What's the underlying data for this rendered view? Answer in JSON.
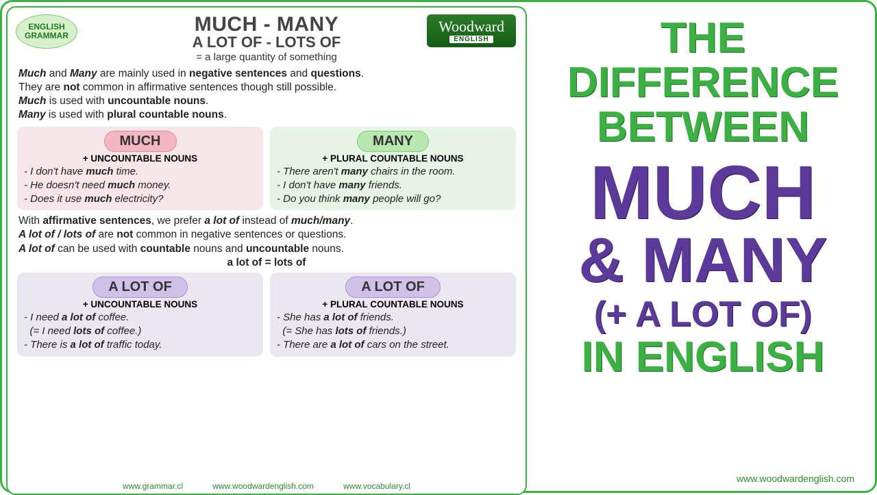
{
  "badge": {
    "line1": "ENGLISH",
    "line2": "GRAMMAR"
  },
  "logo": {
    "main": "Woodward",
    "sub": "ENGLISH"
  },
  "header": {
    "title1": "MUCH - MANY",
    "title2": "A LOT OF - LOTS OF",
    "subtitle": "= a large quantity of something"
  },
  "intro_html": "<i><b>Much</b></i> and <i><b>Many</b></i> are mainly used in <b>negative sentences</b> and <b>questions</b>.<br>They are <b>not</b> common in affirmative sentences though still possible.<br><i><b>Much</b></i> is used with <b>uncountable nouns</b>.<br><i><b>Many</b></i> is used with <b>plural countable nouns</b>.",
  "box_much": {
    "pill": "MUCH",
    "sub": "+ UNCOUNTABLE NOUNS",
    "ex1": "- I don't have <b>much</b> time.",
    "ex2": "- He doesn't need <b>much</b> money.",
    "ex3": "- Does it use <b>much</b> electricity?"
  },
  "box_many": {
    "pill": "MANY",
    "sub": "+ PLURAL COUNTABLE NOUNS",
    "ex1": "- There aren't <b>many</b> chairs in the room.",
    "ex2": "- I don't have <b>many</b> friends.",
    "ex3": "- Do you think <b>many</b> people will go?"
  },
  "middle_html": "With <b>affirmative sentences</b>, we prefer <i><b>a lot of</b></i> instead of <i><b>much/many</b></i>.<br><i><b>A lot of / lots of</b></i> are <b>not</b> common in negative sentences or questions.<br><i><b>A lot of</b></i> can be used with <b>countable</b> nouns and <b>uncountable</b> nouns.<br><span style='display:block;text-align:center'><b>a lot of = lots of</b></span>",
  "box_alot1": {
    "pill": "A LOT OF",
    "sub": "+ UNCOUNTABLE NOUNS",
    "ex1": "- I need <b>a lot of</b> coffee.",
    "ex2": "&nbsp;&nbsp;(= I need <b>lots of</b> coffee.)",
    "ex3": "- There is <b>a lot of</b> traffic today."
  },
  "box_alot2": {
    "pill": "A LOT OF",
    "sub": "+ PLURAL COUNTABLE NOUNS",
    "ex1": "- She has <b>a lot of</b> friends.",
    "ex2": "&nbsp;&nbsp;(= She has <b>lots of</b> friends.)",
    "ex3": "- There are <b>a lot of</b> cars on the street."
  },
  "footer": {
    "u1": "www.grammar.cl",
    "u2": "www.woodwardenglish.com",
    "u3": "www.vocabulary.cl"
  },
  "right": {
    "l1": "THE",
    "l2": "DIFFERENCE",
    "l3": "BETWEEN",
    "l4": "MUCH",
    "l5": "& MANY",
    "l6": "(+ A LOT OF)",
    "l7": "IN ENGLISH",
    "url": "www.woodwardenglish.com"
  },
  "style": {
    "green": "#3cb043",
    "purple": "#5b3a99",
    "pink_bg": "#f7e6e9",
    "green_bg": "#e6f4e5",
    "purple_bg": "#ece6f1"
  }
}
